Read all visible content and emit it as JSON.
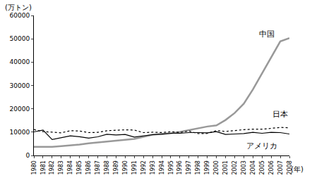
{
  "chart_data": {
    "type": "line",
    "xlabel": "(年)",
    "ylabel": "(万トン)",
    "x": [
      1980,
      1981,
      1982,
      1983,
      1984,
      1985,
      1986,
      1987,
      1988,
      1989,
      1990,
      1991,
      1992,
      1993,
      1994,
      1995,
      1996,
      1997,
      1998,
      1999,
      2000,
      2001,
      2002,
      2003,
      2004,
      2005,
      2006,
      2007,
      2008
    ],
    "xlim": [
      1980,
      2008
    ],
    "xticks": [
      1980,
      1981,
      1982,
      1983,
      1984,
      1985,
      1986,
      1987,
      1988,
      1989,
      1990,
      1991,
      1992,
      1993,
      1994,
      1995,
      1996,
      1997,
      1998,
      1999,
      2000,
      2001,
      2002,
      2003,
      2004,
      2005,
      2006,
      2007,
      2008
    ],
    "ylim": [
      0,
      60000
    ],
    "yticks": [
      0,
      10000,
      20000,
      30000,
      40000,
      50000,
      60000
    ],
    "grid": false,
    "series": [
      {
        "name": "中国",
        "color": "#999999",
        "line_style": "solid",
        "values": [
          3700,
          3600,
          3700,
          4000,
          4300,
          4700,
          5200,
          5600,
          5900,
          6200,
          6600,
          7100,
          8000,
          8900,
          9300,
          9500,
          10100,
          10900,
          11600,
          12400,
          12900,
          15200,
          18200,
          22200,
          28300,
          35300,
          41900,
          48900,
          50300
        ]
      },
      {
        "name": "日本",
        "color": "#000000",
        "line_style": "dot",
        "values": [
          11100,
          10200,
          10000,
          9700,
          10600,
          10500,
          9800,
          9900,
          10600,
          10800,
          11000,
          10900,
          9800,
          9960,
          9830,
          10160,
          9880,
          10450,
          9350,
          9420,
          10640,
          10290,
          10770,
          11050,
          11270,
          11250,
          11620,
          12020,
          11870
        ]
      },
      {
        "name": "アメリカ",
        "color": "#000000",
        "line_style": "solid",
        "values": [
          10100,
          10900,
          6800,
          7700,
          8400,
          8000,
          7400,
          8000,
          9100,
          8800,
          9000,
          7900,
          8400,
          8900,
          9100,
          9500,
          9500,
          9800,
          9800,
          9700,
          10200,
          9000,
          9200,
          9400,
          9900,
          9500,
          9900,
          9800,
          9200
        ]
      }
    ],
    "annotations": [
      {
        "text": "中国",
        "x": 2005.5,
        "y": 52000
      },
      {
        "text": "日本",
        "x": 2007,
        "y": 17500
      },
      {
        "text": "アメリカ",
        "x": 2005,
        "y": 4000
      }
    ]
  }
}
